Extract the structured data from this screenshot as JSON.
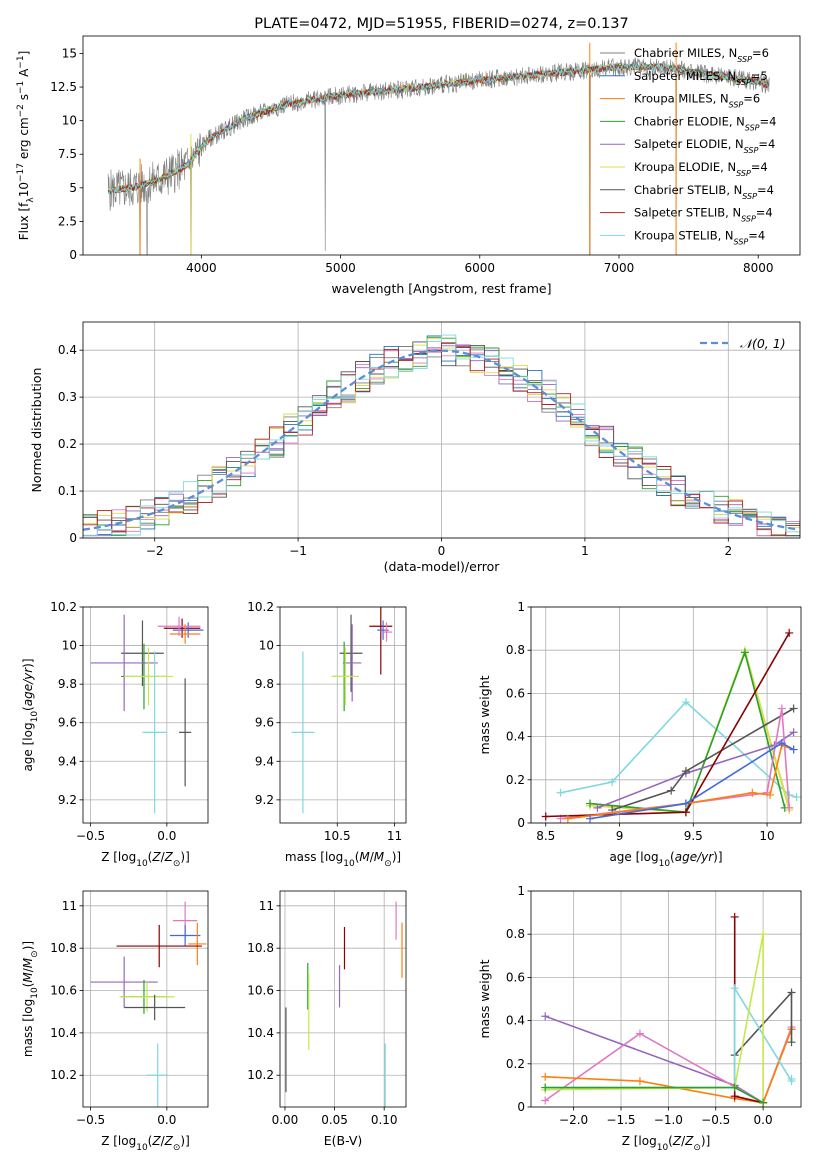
{
  "chart_data": [
    {
      "id": "spectrum",
      "type": "line",
      "title": "PLATE=0472, MJD=51955, FIBERID=0274, z=0.137",
      "xlabel": "wavelength [Angstrom, rest frame]",
      "ylabel": "Flux [fλ10⁻¹⁷ erg cm⁻² s⁻¹ A⁻¹]",
      "xlim": [
        3150,
        8300
      ],
      "ylim": [
        0,
        16.3
      ],
      "xticks": [
        4000,
        5000,
        6000,
        7000,
        8000
      ],
      "yticks": [
        0.0,
        2.5,
        5.0,
        7.5,
        10.0,
        12.5,
        15.0
      ],
      "grid": false,
      "legend_placement": "right",
      "legend": [
        {
          "label": "Chabrier MILES, N",
          "sub": "SSP",
          "suffix": "=6",
          "color": "#7f7f7f"
        },
        {
          "label": "Salpeter MILES, N",
          "sub": "SSP",
          "suffix": "=5",
          "color": "#1f77b4"
        },
        {
          "label": "Kroupa MILES, N",
          "sub": "SSP",
          "suffix": "=6",
          "color": "#ff7f0e"
        },
        {
          "label": "Chabrier ELODIE, N",
          "sub": "SSP",
          "suffix": "=4",
          "color": "#2ca02c"
        },
        {
          "label": "Salpeter ELODIE, N",
          "sub": "SSP",
          "suffix": "=4",
          "color": "#9467bd"
        },
        {
          "label": "Kroupa ELODIE, N",
          "sub": "SSP",
          "suffix": "=4",
          "color": "#dbdb4d"
        },
        {
          "label": "Chabrier STELIB, N",
          "sub": "SSP",
          "suffix": "=4",
          "color": "#555555"
        },
        {
          "label": "Salpeter STELIB, N",
          "sub": "SSP",
          "suffix": "=4",
          "color": "#b22222"
        },
        {
          "label": "Kroupa STELIB, N",
          "sub": "SSP",
          "suffix": "=4",
          "color": "#7fd8de"
        }
      ],
      "continuum_knots": [
        [
          3330,
          4.8
        ],
        [
          3500,
          5.0
        ],
        [
          3700,
          5.6
        ],
        [
          3900,
          6.7
        ],
        [
          4050,
          8.6
        ],
        [
          4300,
          10.1
        ],
        [
          4600,
          11.2
        ],
        [
          5000,
          11.9
        ],
        [
          5500,
          12.4
        ],
        [
          6000,
          13.0
        ],
        [
          6500,
          13.5
        ],
        [
          7000,
          14.0
        ],
        [
          7300,
          14.0
        ],
        [
          7600,
          13.5
        ],
        [
          8000,
          12.9
        ],
        [
          8080,
          12.6
        ]
      ],
      "data_range": [
        3330,
        8080
      ],
      "spikes": [
        [
          3560,
          0.0
        ],
        [
          3610,
          0.0
        ],
        [
          3925,
          0.0
        ],
        [
          4890,
          0.3
        ],
        [
          6790,
          0.0
        ],
        [
          7410,
          0.0
        ]
      ]
    },
    {
      "id": "residuals",
      "type": "bar",
      "xlabel": "(data-model)/error",
      "ylabel": "Normed distribution",
      "xlim": [
        -2.5,
        2.5
      ],
      "ylim": [
        0,
        0.46
      ],
      "xticks": [
        -2,
        -1,
        0,
        1,
        2
      ],
      "yticks": [
        0.0,
        0.1,
        0.2,
        0.3,
        0.4
      ],
      "grid": true,
      "bin_width": 0.1,
      "legend_placement": "top-right",
      "gaussian": {
        "label": "𝒩(0, 1)",
        "mu": 0,
        "sigma": 1,
        "color": "#5b8ed6"
      },
      "series_colors": [
        "#7f7f7f",
        "#1f77b4",
        "#9467bd",
        "#2ca02c",
        "#e377c2",
        "#dbdb4d",
        "#555555",
        "#b22222",
        "#7fd8de"
      ],
      "noise_seeds": [
        3,
        7,
        11,
        13,
        17,
        19,
        23,
        29,
        31
      ]
    },
    {
      "id": "age-vs-Z",
      "type": "scatter",
      "xlabel": "Z [log₁₀(Z/Z⊙)]",
      "ylabel": "age  [log₁₀(age/yr)]",
      "xlim": [
        -0.55,
        0.27
      ],
      "ylim": [
        9.08,
        10.2
      ],
      "xticks": [
        -0.5,
        0.0
      ],
      "xticklabels": [
        "−0.5",
        "0.0"
      ],
      "yticks": [
        9.2,
        9.4,
        9.6,
        9.8,
        10.0,
        10.2
      ],
      "grid": true,
      "points": [
        {
          "x": 0.1,
          "y": 10.09,
          "xerr": 0.12,
          "yerr": 0.05,
          "color": "#8b0000"
        },
        {
          "x": 0.14,
          "y": 10.08,
          "xerr": 0.1,
          "yerr": 0.04,
          "color": "#4169e1"
        },
        {
          "x": 0.12,
          "y": 10.06,
          "xerr": 0.1,
          "yerr": 0.05,
          "color": "#ff7f0e"
        },
        {
          "x": 0.08,
          "y": 10.1,
          "xerr": 0.14,
          "yerr": 0.05,
          "color": "#e377c2"
        },
        {
          "x": -0.16,
          "y": 9.96,
          "xerr": 0.14,
          "yerr": 0.17,
          "color": "#555555"
        },
        {
          "x": -0.28,
          "y": 9.91,
          "xerr": 0.22,
          "yerr": 0.25,
          "color": "#9467bd"
        },
        {
          "x": -0.15,
          "y": 9.84,
          "xerr": 0.15,
          "yerr": 0.17,
          "color": "#2ca02c"
        },
        {
          "x": -0.12,
          "y": 9.84,
          "xerr": 0.16,
          "yerr": 0.15,
          "color": "#c5e84a"
        },
        {
          "x": -0.08,
          "y": 9.55,
          "xerr": 0.08,
          "yerr": 0.42,
          "color": "#7fd8de"
        },
        {
          "x": 0.12,
          "y": 9.55,
          "xerr": 0.04,
          "yerr": 0.28,
          "color": "#555555"
        }
      ]
    },
    {
      "id": "age-vs-mass",
      "type": "scatter",
      "xlabel": "mass [log₁₀(M/M⊙)]",
      "ylabel": "",
      "xlim": [
        10.0,
        11.1
      ],
      "ylim": [
        9.08,
        10.2
      ],
      "xticks": [
        10.5,
        11.0
      ],
      "yticks": [
        9.2,
        9.4,
        9.6,
        9.8,
        10.0,
        10.2
      ],
      "grid": true,
      "points": [
        {
          "x": 10.88,
          "y": 10.1,
          "xerr": 0.1,
          "yerr": 0.25,
          "color": "#8b0000"
        },
        {
          "x": 10.9,
          "y": 10.08,
          "xerr": 0.05,
          "yerr": 0.05,
          "color": "#4169e1"
        },
        {
          "x": 10.93,
          "y": 10.07,
          "xerr": 0.05,
          "yerr": 0.05,
          "color": "#e377c2"
        },
        {
          "x": 10.62,
          "y": 9.96,
          "xerr": 0.1,
          "yerr": 0.2,
          "color": "#555555"
        },
        {
          "x": 10.63,
          "y": 9.91,
          "xerr": 0.08,
          "yerr": 0.2,
          "color": "#9467bd"
        },
        {
          "x": 10.56,
          "y": 9.84,
          "xerr": 0.1,
          "yerr": 0.18,
          "color": "#2ca02c"
        },
        {
          "x": 10.57,
          "y": 9.84,
          "xerr": 0.12,
          "yerr": 0.15,
          "color": "#c5e84a"
        },
        {
          "x": 10.2,
          "y": 9.55,
          "xerr": 0.1,
          "yerr": 0.42,
          "color": "#7fd8de"
        }
      ]
    },
    {
      "id": "massweight-vs-age",
      "type": "line",
      "xlabel": "age  [log₁₀(age/yr)]",
      "ylabel": "mass weight",
      "xlim": [
        8.4,
        10.23
      ],
      "ylim": [
        0,
        1.0
      ],
      "xticks": [
        8.5,
        9.0,
        9.5,
        10.0
      ],
      "yticks": [
        0.0,
        0.2,
        0.4,
        0.6,
        0.8,
        1.0
      ],
      "grid": true,
      "series": [
        {
          "color": "#7fd8de",
          "x": [
            8.6,
            8.95,
            9.45,
            10.15,
            10.2
          ],
          "y": [
            0.14,
            0.19,
            0.56,
            0.13,
            0.12
          ]
        },
        {
          "color": "#c5e84a",
          "x": [
            8.8,
            9.45,
            9.85,
            10.15
          ],
          "y": [
            0.09,
            0.05,
            0.8,
            0.07
          ]
        },
        {
          "color": "#dbdb4d",
          "x": [
            8.8,
            9.45,
            9.85,
            10.15
          ],
          "y": [
            0.08,
            0.05,
            0.79,
            0.06
          ]
        },
        {
          "color": "#2ca02c",
          "x": [
            8.8,
            9.45,
            9.85,
            10.12
          ],
          "y": [
            0.09,
            0.05,
            0.79,
            0.07
          ]
        },
        {
          "color": "#9467bd",
          "x": [
            8.85,
            9.45,
            10.05,
            10.18
          ],
          "y": [
            0.07,
            0.23,
            0.36,
            0.42
          ]
        },
        {
          "color": "#555555",
          "x": [
            8.95,
            9.35,
            9.45,
            10.18
          ],
          "y": [
            0.06,
            0.15,
            0.24,
            0.53
          ]
        },
        {
          "color": "#e377c2",
          "x": [
            8.6,
            9.45,
            10.0,
            10.1,
            10.15
          ],
          "y": [
            0.02,
            0.09,
            0.14,
            0.53,
            0.07
          ]
        },
        {
          "color": "#8b0000",
          "x": [
            8.5,
            9.45,
            10.15
          ],
          "y": [
            0.03,
            0.05,
            0.88
          ]
        },
        {
          "color": "#ff7f0e",
          "x": [
            8.65,
            9.45,
            9.9,
            10.02,
            10.1,
            10.18
          ],
          "y": [
            0.02,
            0.09,
            0.14,
            0.13,
            0.36,
            0.34
          ]
        },
        {
          "color": "#4169e1",
          "x": [
            8.8,
            9.45,
            10.1,
            10.18
          ],
          "y": [
            0.02,
            0.09,
            0.37,
            0.34
          ]
        }
      ]
    },
    {
      "id": "mass-vs-Z",
      "type": "scatter",
      "xlabel": "Z [log₁₀(Z/Z⊙)]",
      "ylabel": "mass [log₁₀(M/M⊙)]",
      "xlim": [
        -0.55,
        0.27
      ],
      "ylim": [
        10.05,
        11.07
      ],
      "xticks": [
        -0.5,
        0.0
      ],
      "xticklabels": [
        "−0.5",
        "0.0"
      ],
      "yticks": [
        10.2,
        10.4,
        10.6,
        10.8,
        11.0
      ],
      "grid": true,
      "points": [
        {
          "x": 0.12,
          "y": 10.93,
          "xerr": 0.08,
          "yerr": 0.09,
          "color": "#e377c2"
        },
        {
          "x": 0.12,
          "y": 10.86,
          "xerr": 0.1,
          "yerr": 0.05,
          "color": "#4169e1"
        },
        {
          "x": 0.2,
          "y": 10.82,
          "xerr": 0.06,
          "yerr": 0.1,
          "color": "#ff7f0e"
        },
        {
          "x": -0.05,
          "y": 10.81,
          "xerr": 0.28,
          "yerr": 0.1,
          "color": "#8b0000"
        },
        {
          "x": -0.28,
          "y": 10.64,
          "xerr": 0.22,
          "yerr": 0.12,
          "color": "#9467bd"
        },
        {
          "x": -0.15,
          "y": 10.57,
          "xerr": 0.15,
          "yerr": 0.08,
          "color": "#2ca02c"
        },
        {
          "x": -0.13,
          "y": 10.57,
          "xerr": 0.18,
          "yerr": 0.07,
          "color": "#c5e84a"
        },
        {
          "x": -0.08,
          "y": 10.52,
          "xerr": 0.2,
          "yerr": 0.06,
          "color": "#555555"
        },
        {
          "x": -0.06,
          "y": 10.2,
          "xerr": 0.07,
          "yerr": 0.15,
          "color": "#7fd8de"
        }
      ]
    },
    {
      "id": "mass-vs-EBV",
      "type": "scatter",
      "xlabel": "E(B-V)",
      "ylabel": "",
      "xlim": [
        -0.005,
        0.122
      ],
      "ylim": [
        10.05,
        11.07
      ],
      "xticks": [
        0.0,
        0.05,
        0.1
      ],
      "xticklabels": [
        "0.00",
        "0.05",
        "0.10"
      ],
      "yticks": [
        10.2,
        10.4,
        10.6,
        10.8,
        11.0
      ],
      "grid": true,
      "points": [
        {
          "x": 0.112,
          "y": 10.93,
          "xerr": 0.0,
          "yerr": 0.09,
          "color": "#e377c2"
        },
        {
          "x": 0.118,
          "y": 10.79,
          "xerr": 0.0,
          "yerr": 0.13,
          "color": "#ff7f0e"
        },
        {
          "x": 0.06,
          "y": 10.8,
          "xerr": 0.0,
          "yerr": 0.1,
          "color": "#8b0000"
        },
        {
          "x": 0.055,
          "y": 10.62,
          "xerr": 0.0,
          "yerr": 0.1,
          "color": "#9467bd"
        },
        {
          "x": 0.023,
          "y": 10.62,
          "xerr": 0.0,
          "yerr": 0.11,
          "color": "#2ca02c"
        },
        {
          "x": 0.024,
          "y": 10.5,
          "xerr": 0.0,
          "yerr": 0.18,
          "color": "#c5e84a"
        },
        {
          "x": 0.001,
          "y": 10.32,
          "xerr": 0.0,
          "yerr": 0.2,
          "color": "#555555"
        },
        {
          "x": 0.101,
          "y": 10.16,
          "xerr": 0.0,
          "yerr": 0.19,
          "color": "#7fd8de"
        }
      ]
    },
    {
      "id": "massweight-vs-Z",
      "type": "line",
      "xlabel": "Z [log₁₀(Z/Z⊙)]",
      "ylabel": "mass weight",
      "xlim": [
        -2.45,
        0.4
      ],
      "ylim": [
        0,
        1.0
      ],
      "xticks": [
        -2.0,
        -1.5,
        -1.0,
        -0.5,
        0.0
      ],
      "xticklabels": [
        "−2.0",
        "−1.5",
        "−1.0",
        "−0.5",
        "0.0"
      ],
      "yticks": [
        0.0,
        0.2,
        0.4,
        0.6,
        0.8,
        1.0
      ],
      "grid": true,
      "series": [
        {
          "color": "#9467bd",
          "x": [
            -2.3,
            -0.3,
            0.0,
            0.3
          ],
          "y": [
            0.42,
            0.1,
            0.02,
            0.36
          ]
        },
        {
          "color": "#e377c2",
          "x": [
            -2.3,
            -1.3,
            0.0,
            0.3
          ],
          "y": [
            0.03,
            0.34,
            0.02,
            0.37
          ]
        },
        {
          "color": "#ff7f0e",
          "x": [
            -2.3,
            -1.3,
            -0.3,
            0.0,
            0.3
          ],
          "y": [
            0.14,
            0.12,
            0.04,
            0.02,
            0.36
          ]
        },
        {
          "color": "#8b0000",
          "x": [
            -0.3,
            -0.3,
            0.0
          ],
          "y": [
            0.88,
            0.05,
            0.02
          ]
        },
        {
          "color": "#555555",
          "x": [
            -0.3,
            0.3,
            0.3
          ],
          "y": [
            0.24,
            0.53,
            0.3
          ]
        },
        {
          "color": "#7fd8de",
          "x": [
            -2.3,
            -0.3,
            -0.3,
            0.3,
            0.3
          ],
          "y": [
            0.09,
            0.09,
            0.55,
            0.12,
            0.13
          ]
        },
        {
          "color": "#c5e84a",
          "x": [
            -2.3,
            -0.3,
            0.0,
            0.0
          ],
          "y": [
            0.08,
            0.09,
            0.8,
            0.0
          ]
        },
        {
          "color": "#2ca02c",
          "x": [
            -2.3,
            -0.3,
            0.0
          ],
          "y": [
            0.09,
            0.09,
            0.02
          ]
        }
      ]
    }
  ]
}
